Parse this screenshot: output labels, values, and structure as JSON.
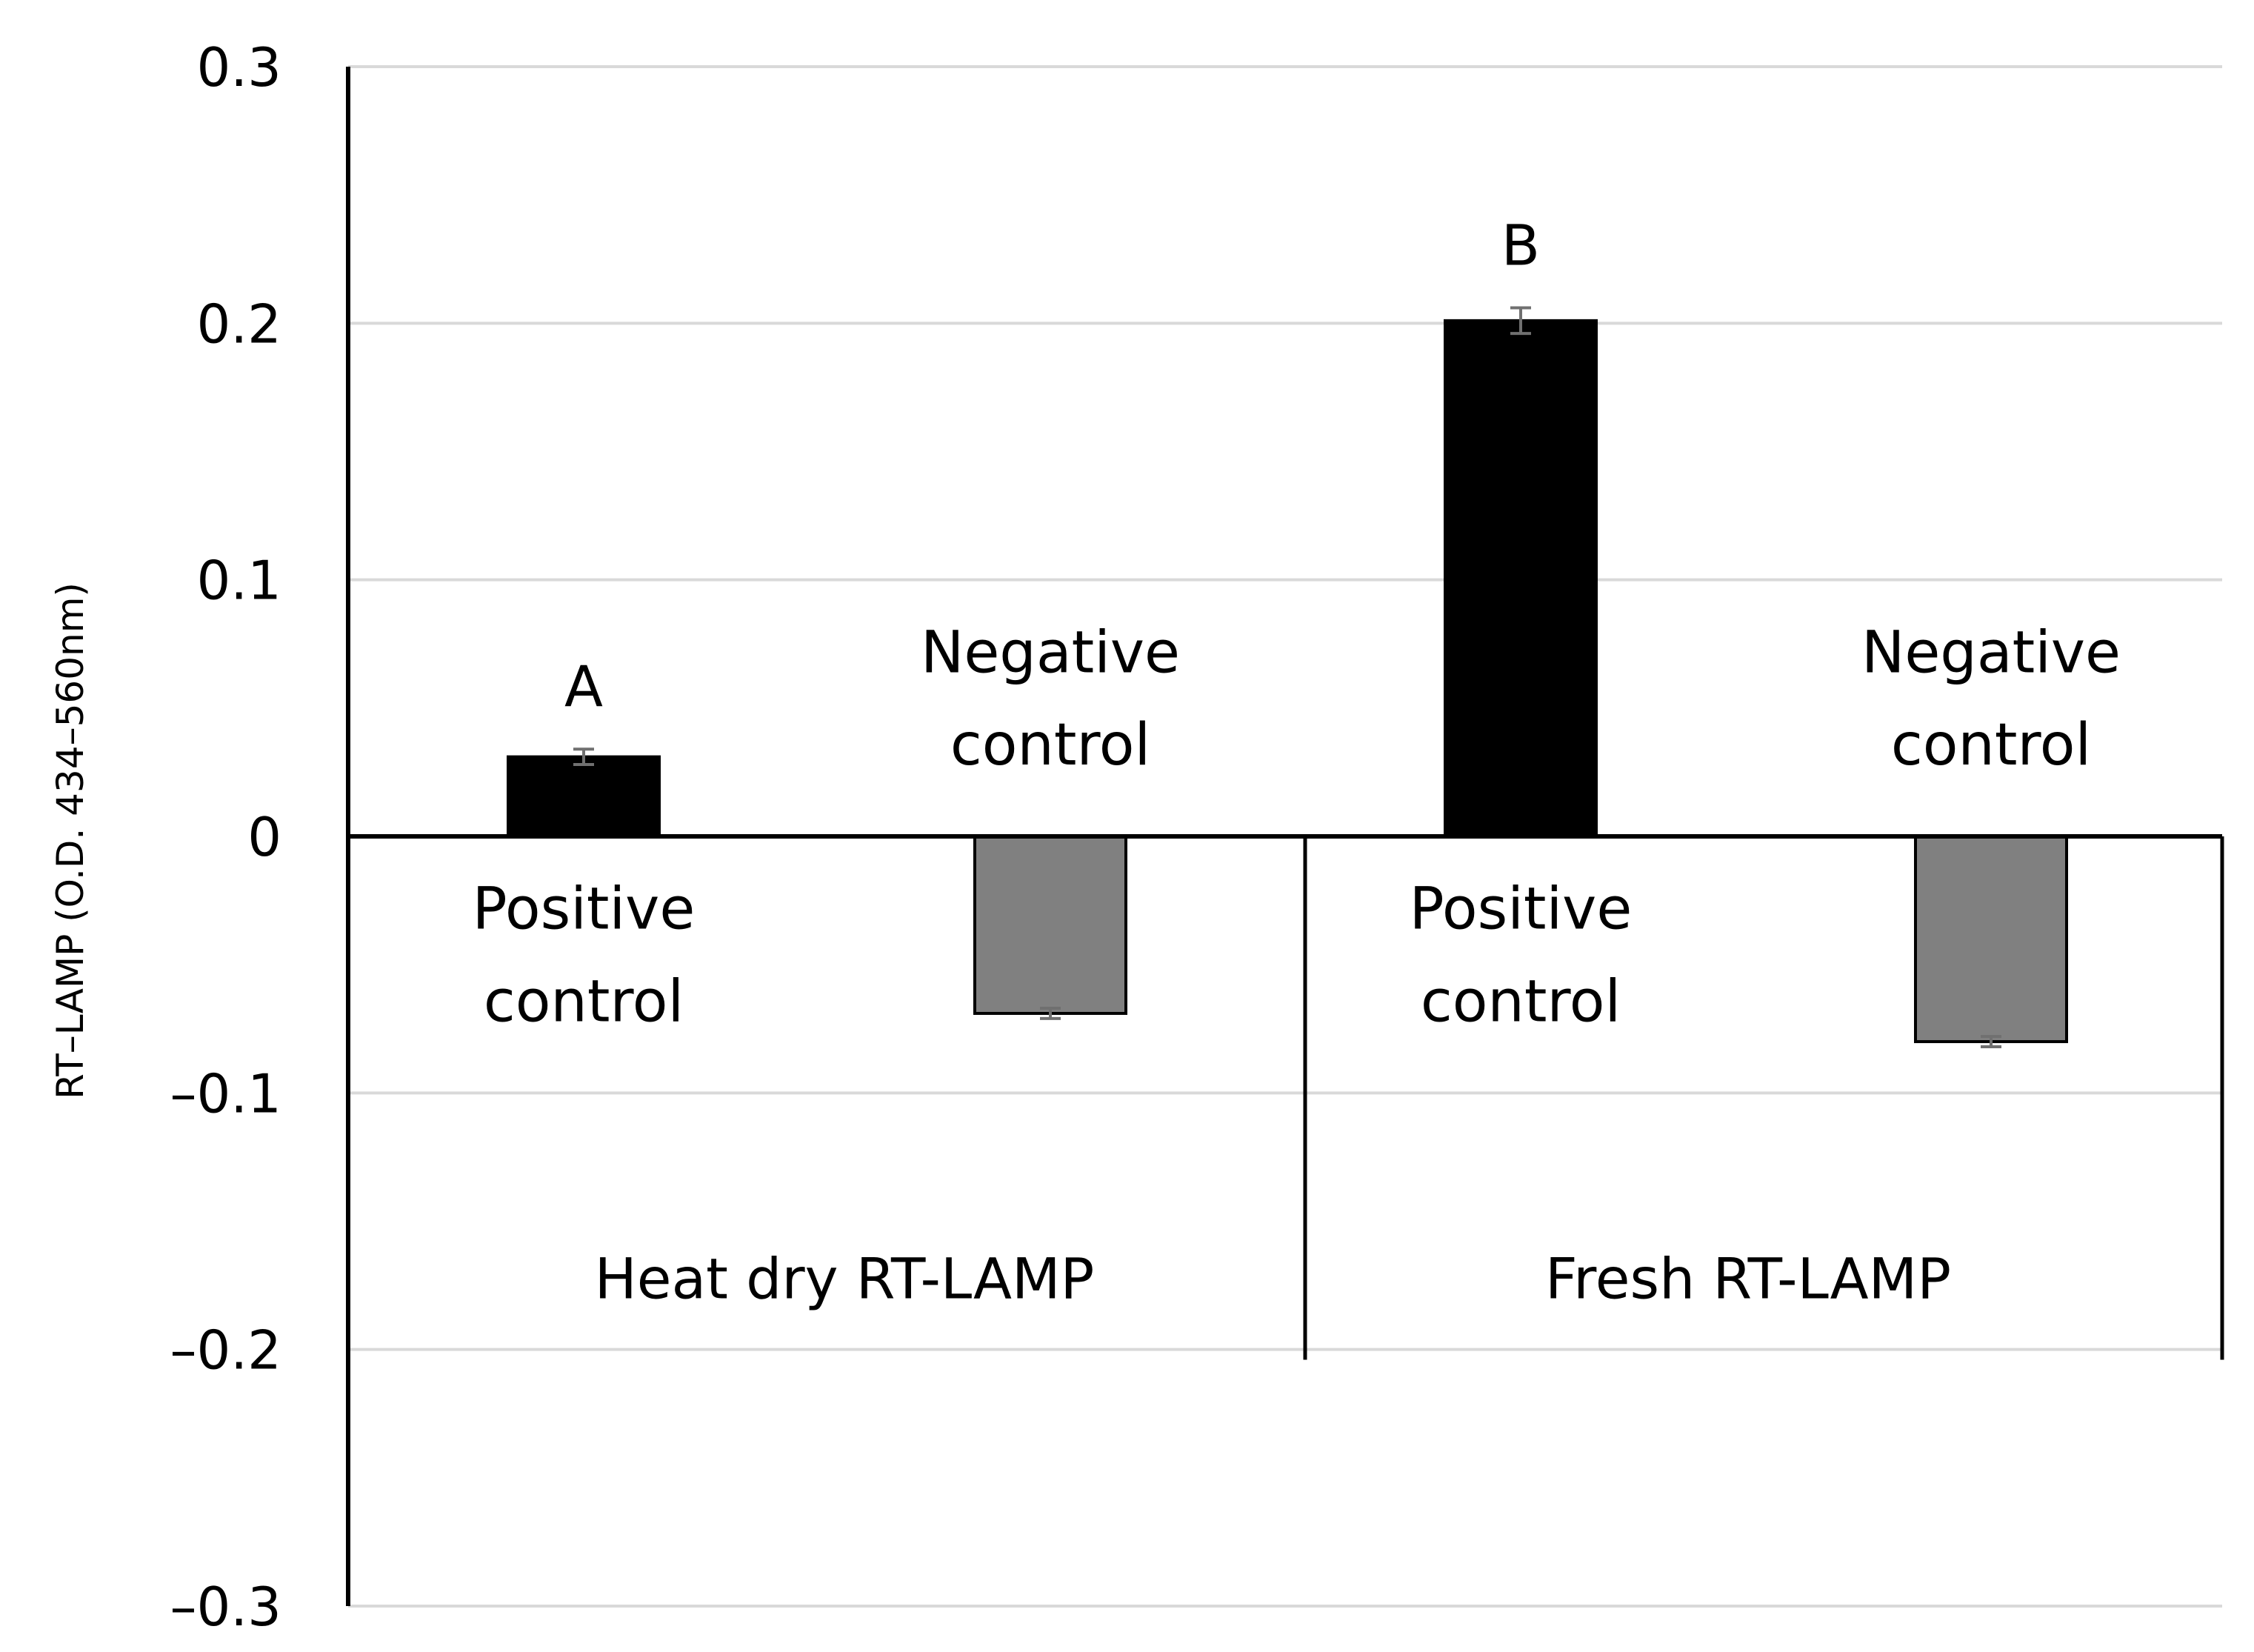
{
  "chart_data": {
    "type": "bar",
    "title": "",
    "xlabel": "",
    "ylabel": "RT–LAMP (O.D. 434–560nm)",
    "ylim": [
      -0.3,
      0.3
    ],
    "yticks": [
      "0.3",
      "0.2",
      "0.1",
      "0",
      "–0.1",
      "–0.2",
      "–0.3"
    ],
    "ytick_values": [
      0.3,
      0.2,
      0.1,
      0,
      -0.1,
      -0.2,
      -0.3
    ],
    "grid": true,
    "groups": [
      "Heat dry RT-LAMP",
      "Fresh RT-LAMP"
    ],
    "categories": [
      {
        "group": "Heat dry RT-LAMP",
        "line1": "Positive",
        "line2": "control",
        "value": 0.031,
        "error": 0.003,
        "color": "#000000",
        "letter": "A"
      },
      {
        "group": "Heat dry RT-LAMP",
        "line1": "Negative",
        "line2": "control",
        "value": -0.069,
        "error": 0.002,
        "color": "#808080",
        "letter": ""
      },
      {
        "group": "Fresh RT-LAMP",
        "line1": "Positive",
        "line2": "control",
        "value": 0.201,
        "error": 0.005,
        "color": "#000000",
        "letter": "B"
      },
      {
        "group": "Fresh RT-LAMP",
        "line1": "Negative",
        "line2": "control",
        "value": -0.08,
        "error": 0.002,
        "color": "#808080",
        "letter": ""
      }
    ]
  }
}
